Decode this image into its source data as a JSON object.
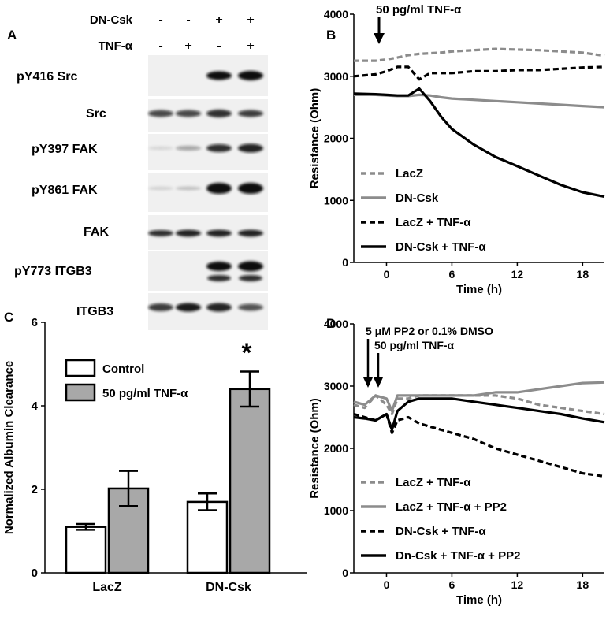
{
  "panels": {
    "A": {
      "letter": "A",
      "header_rows": [
        {
          "label": "DN-Csk",
          "signs": [
            "-",
            "-",
            "+",
            "+"
          ]
        },
        {
          "label": "TNF-α",
          "signs": [
            "-",
            "+",
            "-",
            "+"
          ]
        }
      ],
      "blot_labels": [
        "pY416 Src",
        "Src",
        "pY397 FAK",
        "pY861 FAK",
        "FAK",
        "pY773 ITGB3",
        "ITGB3"
      ]
    },
    "B": {
      "letter": "B",
      "annotation": "50 pg/ml TNF-α"
    },
    "C": {
      "letter": "C",
      "significance": "*"
    },
    "D": {
      "letter": "D",
      "annotation_line1": "5 μM PP2 or 0.1% DMSO",
      "annotation_line2": "50 pg/ml TNF-α"
    }
  },
  "chart_data": [
    {
      "type": "line",
      "panel": "B",
      "xlabel": "Time (h)",
      "ylabel": "Resistance (Ohm)",
      "xlim": [
        -3,
        20
      ],
      "ylim": [
        0,
        4000
      ],
      "xticks": [
        0,
        6,
        12,
        18
      ],
      "yticks": [
        0,
        1000,
        2000,
        3000,
        4000
      ],
      "x": [
        -3,
        -1,
        0,
        1,
        2,
        3,
        4,
        5,
        6,
        8,
        10,
        12,
        14,
        16,
        18,
        20
      ],
      "series": [
        {
          "name": "LacZ",
          "style": "dashed",
          "color": "#8c8c8c",
          "values": [
            3250,
            3250,
            3270,
            3300,
            3340,
            3360,
            3370,
            3380,
            3400,
            3420,
            3440,
            3430,
            3420,
            3400,
            3380,
            3330
          ]
        },
        {
          "name": "DN-Csk",
          "style": "solid",
          "color": "#8c8c8c",
          "values": [
            2700,
            2700,
            2690,
            2680,
            2680,
            2700,
            2690,
            2660,
            2640,
            2620,
            2600,
            2580,
            2560,
            2540,
            2520,
            2500
          ]
        },
        {
          "name": "LacZ + TNF-α",
          "style": "dashed",
          "color": "#000000",
          "values": [
            3000,
            3030,
            3080,
            3150,
            3150,
            2950,
            3050,
            3050,
            3050,
            3080,
            3080,
            3100,
            3100,
            3120,
            3140,
            3150
          ]
        },
        {
          "name": "DN-Csk + TNF-α",
          "style": "solid",
          "color": "#000000",
          "values": [
            2720,
            2710,
            2700,
            2690,
            2690,
            2800,
            2600,
            2350,
            2150,
            1900,
            1700,
            1550,
            1400,
            1250,
            1130,
            1060
          ]
        }
      ]
    },
    {
      "type": "bar",
      "panel": "C",
      "ylabel": "Normalized Albumin Clearance",
      "ylim": [
        0,
        6
      ],
      "yticks": [
        0,
        2,
        4,
        6
      ],
      "categories": [
        "LacZ",
        "DN-Csk"
      ],
      "series": [
        {
          "name": "Control",
          "color": "#ffffff",
          "values": [
            1.1,
            1.7
          ],
          "errors": [
            0.07,
            0.2
          ]
        },
        {
          "name": "50 pg/ml TNF-α",
          "color": "#a8a8a8",
          "values": [
            2.02,
            4.4
          ],
          "errors": [
            0.42,
            0.42
          ]
        }
      ]
    },
    {
      "type": "line",
      "panel": "D",
      "xlabel": "Time (h)",
      "ylabel": "Resistance (Ohm)",
      "xlim": [
        -3,
        20
      ],
      "ylim": [
        0,
        4000
      ],
      "xticks": [
        0,
        6,
        12,
        18
      ],
      "yticks": [
        0,
        1000,
        2000,
        3000,
        4000
      ],
      "x": [
        -3,
        -2,
        -1,
        0,
        0.5,
        1,
        2,
        3,
        4,
        6,
        8,
        10,
        12,
        14,
        16,
        18,
        20
      ],
      "series": [
        {
          "name": "LacZ + TNF-α",
          "style": "dashed",
          "color": "#8c8c8c",
          "values": [
            2700,
            2650,
            2850,
            2700,
            2550,
            2800,
            2800,
            2850,
            2850,
            2850,
            2850,
            2850,
            2800,
            2700,
            2650,
            2600,
            2550
          ]
        },
        {
          "name": "LacZ + TNF-α + PP2",
          "style": "solid",
          "color": "#8c8c8c",
          "values": [
            2750,
            2700,
            2850,
            2800,
            2600,
            2850,
            2850,
            2850,
            2850,
            2850,
            2850,
            2900,
            2900,
            2950,
            3000,
            3050,
            3060
          ]
        },
        {
          "name": "DN-Csk + TNF-α",
          "style": "dashed",
          "color": "#000000",
          "values": [
            2550,
            2500,
            2450,
            2550,
            2250,
            2450,
            2500,
            2400,
            2350,
            2250,
            2150,
            2000,
            1900,
            1800,
            1700,
            1600,
            1550
          ]
        },
        {
          "name": "Dn-Csk + TNF-α + PP2",
          "style": "solid",
          "color": "#000000",
          "values": [
            2500,
            2480,
            2450,
            2550,
            2300,
            2600,
            2750,
            2800,
            2800,
            2800,
            2750,
            2700,
            2650,
            2600,
            2550,
            2480,
            2420
          ]
        }
      ]
    }
  ]
}
